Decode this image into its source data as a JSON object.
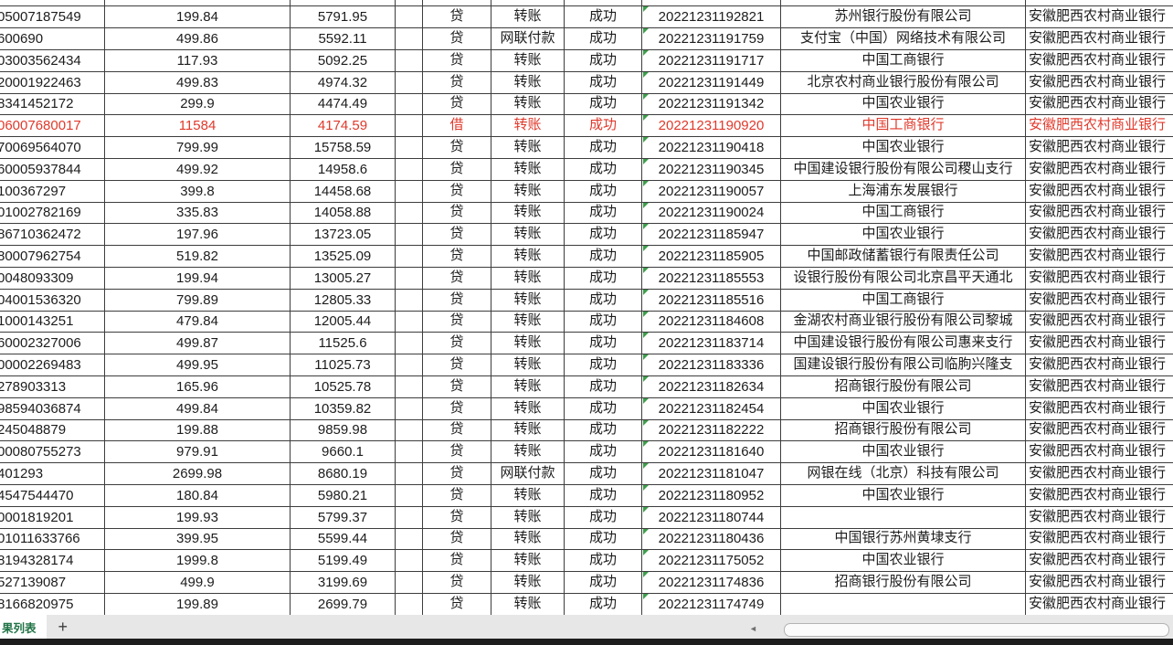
{
  "colors": {
    "highlight_red": "#e0392b",
    "indicator_green": "#3d9e4b",
    "sheet_tab_green": "#217346",
    "gridline": "#3d3d3d"
  },
  "sheet_bar": {
    "active_tab": "果列表",
    "add_sheet": "+"
  },
  "icons": {
    "scroll_left": "◄"
  },
  "grid": {
    "rows": [
      {
        "id": "05007187549",
        "amount": "199.84",
        "balance": "5791.95",
        "drcr": "贷",
        "method": "转账",
        "status": "成功",
        "time": "20221231192821",
        "bank": "苏州银行股份有限公司",
        "branch": "安徽肥西农村商业银行",
        "highlight": false
      },
      {
        "id": "600690",
        "amount": "499.86",
        "balance": "5592.11",
        "drcr": "贷",
        "method": "网联付款",
        "status": "成功",
        "time": "20221231191759",
        "bank": "支付宝（中国）网络技术有限公司",
        "branch": "安徽肥西农村商业银行",
        "highlight": false
      },
      {
        "id": "03003562434",
        "amount": "117.93",
        "balance": "5092.25",
        "drcr": "贷",
        "method": "转账",
        "status": "成功",
        "time": "20221231191717",
        "bank": "中国工商银行",
        "branch": "安徽肥西农村商业银行",
        "highlight": false
      },
      {
        "id": "20001922463",
        "amount": "499.83",
        "balance": "4974.32",
        "drcr": "贷",
        "method": "转账",
        "status": "成功",
        "time": "20221231191449",
        "bank": "北京农村商业银行股份有限公司",
        "branch": "安徽肥西农村商业银行",
        "highlight": false
      },
      {
        "id": "8341452172",
        "amount": "299.9",
        "balance": "4474.49",
        "drcr": "贷",
        "method": "转账",
        "status": "成功",
        "time": "20221231191342",
        "bank": "中国农业银行",
        "branch": "安徽肥西农村商业银行",
        "highlight": false
      },
      {
        "id": "06007680017",
        "amount": "11584",
        "balance": "4174.59",
        "drcr": "借",
        "method": "转账",
        "status": "成功",
        "time": "20221231190920",
        "bank": "中国工商银行",
        "branch": "安徽肥西农村商业银行",
        "highlight": true
      },
      {
        "id": "70069564070",
        "amount": "799.99",
        "balance": "15758.59",
        "drcr": "贷",
        "method": "转账",
        "status": "成功",
        "time": "20221231190418",
        "bank": "中国农业银行",
        "branch": "安徽肥西农村商业银行",
        "highlight": false
      },
      {
        "id": "60005937844",
        "amount": "499.92",
        "balance": "14958.6",
        "drcr": "贷",
        "method": "转账",
        "status": "成功",
        "time": "20221231190345",
        "bank": "中国建设银行股份有限公司稷山支行",
        "branch": "安徽肥西农村商业银行",
        "highlight": false
      },
      {
        "id": "100367297",
        "amount": "399.8",
        "balance": "14458.68",
        "drcr": "贷",
        "method": "转账",
        "status": "成功",
        "time": "20221231190057",
        "bank": "上海浦东发展银行",
        "branch": "安徽肥西农村商业银行",
        "highlight": false
      },
      {
        "id": "01002782169",
        "amount": "335.83",
        "balance": "14058.88",
        "drcr": "贷",
        "method": "转账",
        "status": "成功",
        "time": "20221231190024",
        "bank": "中国工商银行",
        "branch": "安徽肥西农村商业银行",
        "highlight": false
      },
      {
        "id": "86710362472",
        "amount": "197.96",
        "balance": "13723.05",
        "drcr": "贷",
        "method": "转账",
        "status": "成功",
        "time": "20221231185947",
        "bank": "中国农业银行",
        "branch": "安徽肥西农村商业银行",
        "highlight": false
      },
      {
        "id": "80007962754",
        "amount": "519.82",
        "balance": "13525.09",
        "drcr": "贷",
        "method": "转账",
        "status": "成功",
        "time": "20221231185905",
        "bank": "中国邮政储蓄银行有限责任公司",
        "branch": "安徽肥西农村商业银行",
        "highlight": false
      },
      {
        "id": "0048093309",
        "amount": "199.94",
        "balance": "13005.27",
        "drcr": "贷",
        "method": "转账",
        "status": "成功",
        "time": "20221231185553",
        "bank": "设银行股份有限公司北京昌平天通北",
        "branch": "安徽肥西农村商业银行",
        "highlight": false
      },
      {
        "id": "04001536320",
        "amount": "799.89",
        "balance": "12805.33",
        "drcr": "贷",
        "method": "转账",
        "status": "成功",
        "time": "20221231185516",
        "bank": "中国工商银行",
        "branch": "安徽肥西农村商业银行",
        "highlight": false
      },
      {
        "id": "1000143251",
        "amount": "479.84",
        "balance": "12005.44",
        "drcr": "贷",
        "method": "转账",
        "status": "成功",
        "time": "20221231184608",
        "bank": "金湖农村商业银行股份有限公司黎城",
        "branch": "安徽肥西农村商业银行",
        "highlight": false
      },
      {
        "id": "60002327006",
        "amount": "499.87",
        "balance": "11525.6",
        "drcr": "贷",
        "method": "转账",
        "status": "成功",
        "time": "20221231183714",
        "bank": "中国建设银行股份有限公司惠来支行",
        "branch": "安徽肥西农村商业银行",
        "highlight": false
      },
      {
        "id": "00002269483",
        "amount": "499.95",
        "balance": "11025.73",
        "drcr": "贷",
        "method": "转账",
        "status": "成功",
        "time": "20221231183336",
        "bank": "国建设银行股份有限公司临朐兴隆支",
        "branch": "安徽肥西农村商业银行",
        "highlight": false
      },
      {
        "id": "278903313",
        "amount": "165.96",
        "balance": "10525.78",
        "drcr": "贷",
        "method": "转账",
        "status": "成功",
        "time": "20221231182634",
        "bank": "招商银行股份有限公司",
        "branch": "安徽肥西农村商业银行",
        "highlight": false
      },
      {
        "id": "98594036874",
        "amount": "499.84",
        "balance": "10359.82",
        "drcr": "贷",
        "method": "转账",
        "status": "成功",
        "time": "20221231182454",
        "bank": "中国农业银行",
        "branch": "安徽肥西农村商业银行",
        "highlight": false
      },
      {
        "id": "245048879",
        "amount": "199.88",
        "balance": "9859.98",
        "drcr": "贷",
        "method": "转账",
        "status": "成功",
        "time": "20221231182222",
        "bank": "招商银行股份有限公司",
        "branch": "安徽肥西农村商业银行",
        "highlight": false
      },
      {
        "id": "00080755273",
        "amount": "979.91",
        "balance": "9660.1",
        "drcr": "贷",
        "method": "转账",
        "status": "成功",
        "time": "20221231181640",
        "bank": "中国农业银行",
        "branch": "安徽肥西农村商业银行",
        "highlight": false
      },
      {
        "id": "401293",
        "amount": "2699.98",
        "balance": "8680.19",
        "drcr": "贷",
        "method": "网联付款",
        "status": "成功",
        "time": "20221231181047",
        "bank": "网银在线（北京）科技有限公司",
        "branch": "安徽肥西农村商业银行",
        "highlight": false
      },
      {
        "id": "4547544470",
        "amount": "180.84",
        "balance": "5980.21",
        "drcr": "贷",
        "method": "转账",
        "status": "成功",
        "time": "20221231180952",
        "bank": "中国农业银行",
        "branch": "安徽肥西农村商业银行",
        "highlight": false
      },
      {
        "id": "0001819201",
        "amount": "199.93",
        "balance": "5799.37",
        "drcr": "贷",
        "method": "转账",
        "status": "成功",
        "time": "20221231180744",
        "bank": "",
        "branch": "安徽肥西农村商业银行",
        "highlight": false
      },
      {
        "id": "01011633766",
        "amount": "399.95",
        "balance": "5599.44",
        "drcr": "贷",
        "method": "转账",
        "status": "成功",
        "time": "20221231180436",
        "bank": "中国银行苏州黄埭支行",
        "branch": "安徽肥西农村商业银行",
        "highlight": false
      },
      {
        "id": "8194328174",
        "amount": "1999.8",
        "balance": "5199.49",
        "drcr": "贷",
        "method": "转账",
        "status": "成功",
        "time": "20221231175052",
        "bank": "中国农业银行",
        "branch": "安徽肥西农村商业银行",
        "highlight": false
      },
      {
        "id": "527139087",
        "amount": "499.9",
        "balance": "3199.69",
        "drcr": "贷",
        "method": "转账",
        "status": "成功",
        "time": "20221231174836",
        "bank": "招商银行股份有限公司",
        "branch": "安徽肥西农村商业银行",
        "highlight": false
      },
      {
        "id": "8166820975",
        "amount": "199.89",
        "balance": "2699.79",
        "drcr": "贷",
        "method": "转账",
        "status": "成功",
        "time": "20221231174749",
        "bank": "",
        "branch": "安徽肥西农村商业银行",
        "highlight": false
      }
    ]
  }
}
